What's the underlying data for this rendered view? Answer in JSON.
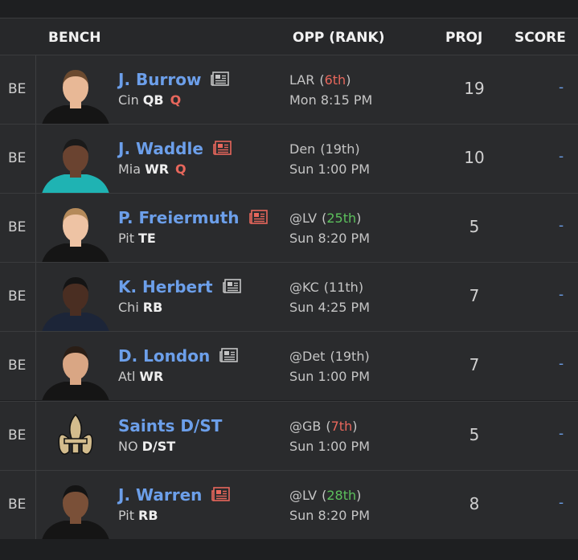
{
  "header": {
    "columns": [
      "BENCH",
      "OPP (RANK)",
      "PROJ",
      "SCORE"
    ]
  },
  "rows": [
    {
      "slot": "BE",
      "name": "J. Burrow",
      "team": "Cin",
      "position": "QB",
      "status": "Q",
      "opponent": "LAR",
      "rank": "6th",
      "time": "Mon 8:15 PM",
      "proj": 19,
      "score": "-",
      "rank_color": "#e8675c",
      "news_color": "#c4c4c4"
    },
    {
      "slot": "BE",
      "name": "J. Waddle",
      "team": "Mia",
      "position": "WR",
      "status": "Q",
      "opponent": "Den",
      "rank": "19th",
      "time": "Sun 1:00 PM",
      "proj": 10,
      "score": "-",
      "rank_color": "#c5c5c5",
      "news_color": "#e8675c"
    },
    {
      "slot": "BE",
      "name": "P. Freiermuth",
      "team": "Pit",
      "position": "TE",
      "opponent": "@LV",
      "rank": "25th",
      "time": "Sun 8:20 PM",
      "proj": 5,
      "score": "-",
      "rank_color": "#5cc05c",
      "news_color": "#e8675c"
    },
    {
      "slot": "BE",
      "name": "K. Herbert",
      "team": "Chi",
      "position": "RB",
      "opponent": "@KC",
      "rank": "11th",
      "time": "Sun 4:25 PM",
      "proj": 7,
      "score": "-",
      "rank_color": "#c5c5c5",
      "news_color": "#c4c4c4"
    },
    {
      "slot": "BE",
      "name": "D. London",
      "team": "Atl",
      "position": "WR",
      "opponent": "@Det",
      "rank": "19th",
      "time": "Sun 1:00 PM",
      "proj": 7,
      "score": "-",
      "rank_color": "#c5c5c5",
      "news_color": "#c4c4c4"
    },
    {
      "slot": "BE",
      "name": "Saints D/ST",
      "team": "NO",
      "position": "D/ST",
      "opponent": "@GB",
      "rank": "7th",
      "time": "Sun 1:00 PM",
      "proj": 5,
      "score": "-",
      "rank_color": "#e8675c"
    },
    {
      "slot": "BE",
      "name": "J. Warren",
      "team": "Pit",
      "position": "RB",
      "opponent": "@LV",
      "rank": "28th",
      "time": "Sun 8:20 PM",
      "proj": 8,
      "score": "-",
      "rank_color": "#5cc05c",
      "news_color": "#e8675c"
    }
  ]
}
